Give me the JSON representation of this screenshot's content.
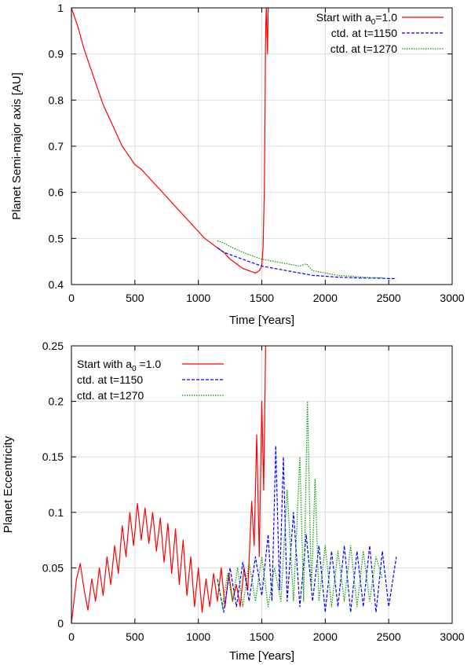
{
  "colors": {
    "red": "#ff0000",
    "blue": "#0000ff",
    "green": "#009900",
    "grid": "#dddddd",
    "axis": "#000000"
  },
  "chart_data": [
    {
      "type": "line",
      "xlabel": "Time [Years]",
      "ylabel": "Planet Semi-major axis [AU]",
      "xlim": [
        0,
        3000
      ],
      "ylim": [
        0.4,
        1.0
      ],
      "xticks": [
        0,
        500,
        1000,
        1500,
        2000,
        2500,
        3000
      ],
      "xtick_labels": [
        "0",
        "500",
        "1000",
        "1500",
        "2000",
        "2500",
        "3000"
      ],
      "yticks": [
        0.4,
        0.5,
        0.6,
        0.7,
        0.8,
        0.9,
        1.0
      ],
      "ytick_labels": [
        "0.4",
        "0.5",
        "0.6",
        "0.7",
        "0.8",
        "0.9",
        "1"
      ],
      "grid": true,
      "legend_position": "top-right",
      "series": [
        {
          "name": "Start with a0=1.0",
          "label_main": "Start with a",
          "label_sub": "0",
          "label_tail": "=1.0",
          "color_key": "red",
          "dash": "solid",
          "x": [
            0,
            50,
            100,
            150,
            200,
            250,
            300,
            350,
            400,
            450,
            500,
            550,
            600,
            650,
            700,
            750,
            800,
            850,
            900,
            950,
            1000,
            1050,
            1100,
            1150,
            1200,
            1250,
            1300,
            1350,
            1400,
            1450,
            1480,
            1500,
            1510,
            1520,
            1525,
            1530,
            1535,
            1540,
            1545,
            1550
          ],
          "y": [
            1.0,
            0.96,
            0.91,
            0.87,
            0.83,
            0.79,
            0.76,
            0.73,
            0.7,
            0.68,
            0.66,
            0.65,
            0.635,
            0.62,
            0.605,
            0.59,
            0.575,
            0.56,
            0.545,
            0.53,
            0.515,
            0.5,
            0.49,
            0.48,
            0.47,
            0.455,
            0.445,
            0.435,
            0.43,
            0.425,
            0.43,
            0.44,
            0.48,
            0.6,
            0.75,
            0.95,
            1.0,
            0.95,
            0.9,
            1.0
          ]
        },
        {
          "name": "ctd. at t=1150",
          "color_key": "blue",
          "dash": "dashed",
          "x": [
            1150,
            1200,
            1250,
            1300,
            1400,
            1500,
            1600,
            1700,
            1800,
            1900,
            2000,
            2100,
            2200,
            2300,
            2400,
            2500,
            2560
          ],
          "y": [
            0.48,
            0.47,
            0.465,
            0.46,
            0.45,
            0.44,
            0.435,
            0.43,
            0.425,
            0.42,
            0.418,
            0.416,
            0.415,
            0.414,
            0.414,
            0.413,
            0.413
          ]
        },
        {
          "name": "ctd. at t=1270",
          "color_key": "green",
          "dash": "dotted",
          "x": [
            1150,
            1200,
            1270,
            1350,
            1400,
            1500,
            1600,
            1700,
            1800,
            1850,
            1900,
            2000,
            2100,
            2200,
            2300,
            2400,
            2450
          ],
          "y": [
            0.495,
            0.49,
            0.48,
            0.47,
            0.465,
            0.455,
            0.45,
            0.445,
            0.44,
            0.445,
            0.43,
            0.425,
            0.42,
            0.418,
            0.416,
            0.415,
            0.415
          ]
        }
      ]
    },
    {
      "type": "line",
      "xlabel": "Time [Years]",
      "ylabel": "Planet Eccentricity",
      "xlim": [
        0,
        3000
      ],
      "ylim": [
        0,
        0.25
      ],
      "xticks": [
        0,
        500,
        1000,
        1500,
        2000,
        2500,
        3000
      ],
      "xtick_labels": [
        "0",
        "500",
        "1000",
        "1500",
        "2000",
        "2500",
        "3000"
      ],
      "yticks": [
        0,
        0.05,
        0.1,
        0.15,
        0.2,
        0.25
      ],
      "ytick_labels": [
        "0",
        "0.05",
        "0.1",
        "0.15",
        "0.2",
        "0.25"
      ],
      "grid": true,
      "legend_position": "top-left",
      "series": [
        {
          "name": "Start with a0 =1.0",
          "label_main": "Start with a",
          "label_sub": "0",
          "label_tail": " =1.0",
          "color_key": "red",
          "dash": "solid",
          "x": [
            0,
            40,
            70,
            100,
            130,
            160,
            190,
            220,
            250,
            280,
            310,
            340,
            370,
            400,
            430,
            460,
            490,
            520,
            550,
            580,
            610,
            640,
            670,
            700,
            730,
            760,
            790,
            820,
            850,
            880,
            910,
            940,
            970,
            1000,
            1030,
            1060,
            1090,
            1120,
            1150,
            1180,
            1210,
            1240,
            1270,
            1300,
            1330,
            1360,
            1390,
            1420,
            1440,
            1460,
            1480,
            1500,
            1515,
            1530
          ],
          "y": [
            0,
            0.04,
            0.054,
            0.03,
            0.012,
            0.04,
            0.02,
            0.05,
            0.025,
            0.06,
            0.035,
            0.07,
            0.045,
            0.088,
            0.06,
            0.1,
            0.07,
            0.108,
            0.075,
            0.104,
            0.072,
            0.1,
            0.065,
            0.095,
            0.055,
            0.09,
            0.045,
            0.085,
            0.035,
            0.075,
            0.025,
            0.06,
            0.015,
            0.05,
            0.01,
            0.04,
            0.015,
            0.045,
            0.02,
            0.05,
            0.015,
            0.045,
            0.02,
            0.035,
            0.015,
            0.05,
            0.03,
            0.11,
            0.07,
            0.17,
            0.06,
            0.2,
            0.12,
            0.25
          ]
        },
        {
          "name": "ctd. at t=1150",
          "color_key": "blue",
          "dash": "dashed",
          "x": [
            1150,
            1200,
            1250,
            1300,
            1350,
            1400,
            1450,
            1500,
            1550,
            1580,
            1610,
            1640,
            1670,
            1700,
            1750,
            1800,
            1850,
            1900,
            1950,
            2000,
            2050,
            2100,
            2150,
            2200,
            2250,
            2300,
            2350,
            2400,
            2450,
            2500,
            2560
          ],
          "y": [
            0.04,
            0.01,
            0.05,
            0.015,
            0.055,
            0.02,
            0.06,
            0.025,
            0.08,
            0.02,
            0.16,
            0.03,
            0.15,
            0.02,
            0.1,
            0.015,
            0.08,
            0.02,
            0.07,
            0.01,
            0.065,
            0.015,
            0.07,
            0.01,
            0.065,
            0.015,
            0.07,
            0.01,
            0.065,
            0.015,
            0.06
          ]
        },
        {
          "name": "ctd. at t=1270",
          "color_key": "green",
          "dash": "dotted",
          "x": [
            1150,
            1190,
            1230,
            1270,
            1310,
            1350,
            1400,
            1450,
            1500,
            1550,
            1600,
            1650,
            1700,
            1750,
            1800,
            1830,
            1860,
            1890,
            1920,
            1950,
            2000,
            2050,
            2100,
            2150,
            2200,
            2250,
            2300,
            2350,
            2400,
            2450
          ],
          "y": [
            0.04,
            0.015,
            0.045,
            0.02,
            0.05,
            0.015,
            0.055,
            0.02,
            0.06,
            0.015,
            0.05,
            0.02,
            0.12,
            0.02,
            0.15,
            0.02,
            0.2,
            0.03,
            0.13,
            0.02,
            0.07,
            0.015,
            0.065,
            0.02,
            0.07,
            0.015,
            0.065,
            0.02,
            0.06,
            0.04
          ]
        }
      ]
    }
  ]
}
